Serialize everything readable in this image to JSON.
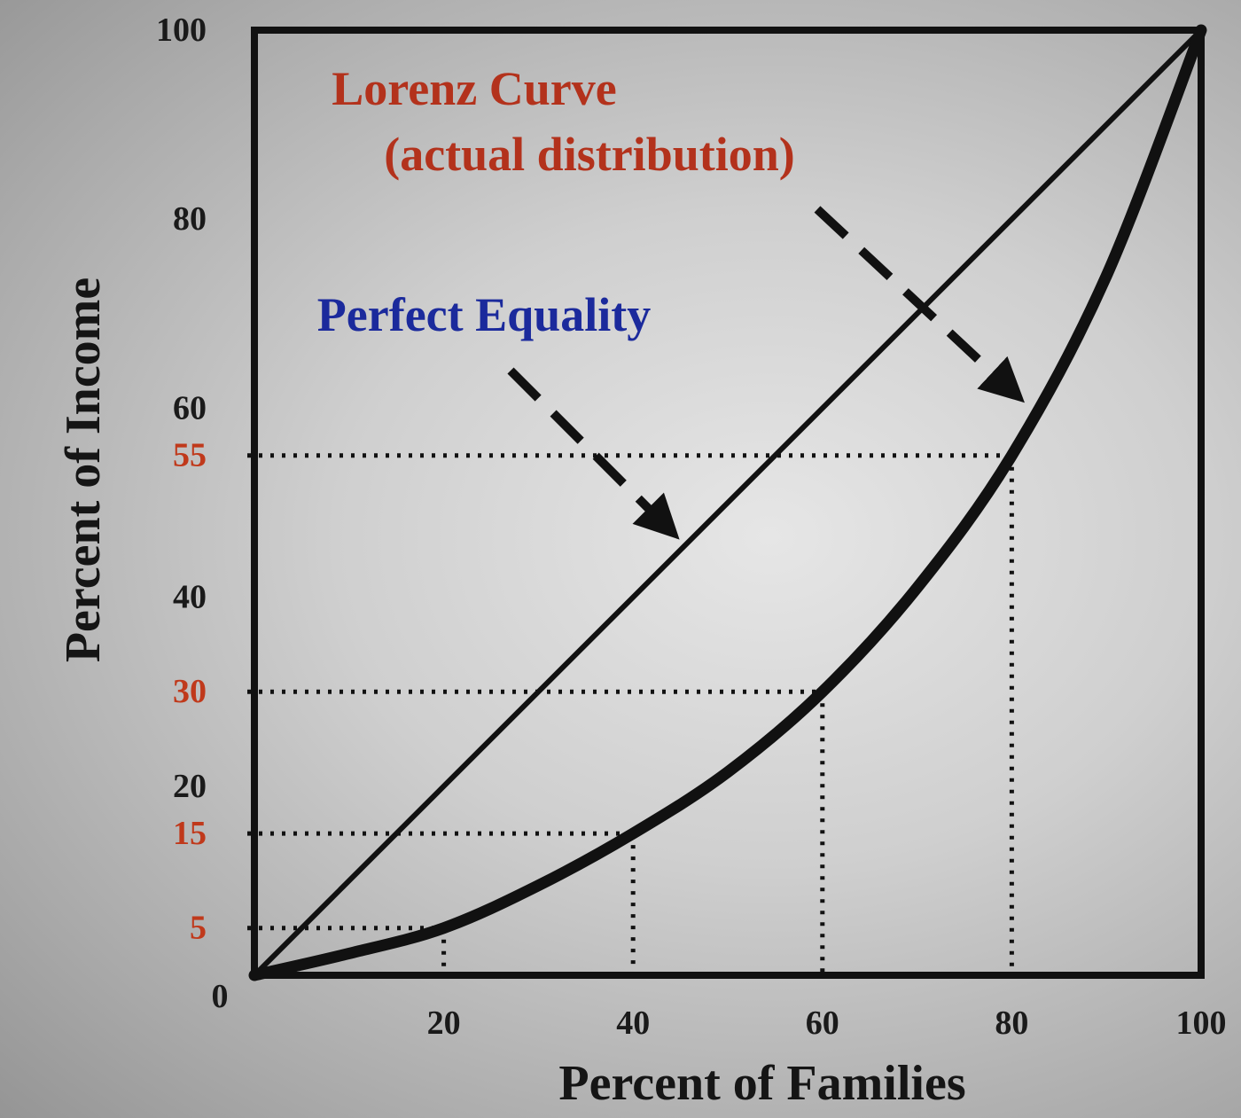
{
  "chart_data": {
    "type": "line",
    "xlabel": "Percent of Families",
    "ylabel": "Percent of Income",
    "xlim": [
      0,
      100
    ],
    "ylim": [
      0,
      100
    ],
    "x_ticks": [
      "0",
      "20",
      "40",
      "60",
      "80",
      "100"
    ],
    "y_ticks": [
      {
        "label": "100",
        "value": 100,
        "highlight": false
      },
      {
        "label": "80",
        "value": 80,
        "highlight": false
      },
      {
        "label": "60",
        "value": 60,
        "highlight": false
      },
      {
        "label": "55",
        "value": 55,
        "highlight": true
      },
      {
        "label": "40",
        "value": 40,
        "highlight": false
      },
      {
        "label": "30",
        "value": 30,
        "highlight": true
      },
      {
        "label": "20",
        "value": 20,
        "highlight": false
      },
      {
        "label": "15",
        "value": 15,
        "highlight": true
      },
      {
        "label": "5",
        "value": 5,
        "highlight": true
      }
    ],
    "series": [
      {
        "name": "Perfect Equality",
        "x": [
          0,
          100
        ],
        "y": [
          0,
          100
        ]
      },
      {
        "name": "Lorenz Curve (actual distribution)",
        "x": [
          0,
          10,
          20,
          30,
          40,
          50,
          60,
          70,
          80,
          90,
          100
        ],
        "y": [
          0,
          2.3,
          5,
          9.5,
          15,
          21.5,
          30,
          41,
          55,
          74,
          100
        ]
      }
    ],
    "reference_points": [
      {
        "x": 20,
        "y": 5
      },
      {
        "x": 40,
        "y": 15
      },
      {
        "x": 60,
        "y": 30
      },
      {
        "x": 80,
        "y": 55
      }
    ],
    "annotations": [
      {
        "lines": [
          "Lorenz Curve",
          "(actual distribution)"
        ],
        "color": "#b3321c"
      },
      {
        "lines": [
          "Perfect Equality"
        ],
        "color": "#1b2a9c"
      }
    ],
    "grid": false,
    "legend": "none"
  }
}
